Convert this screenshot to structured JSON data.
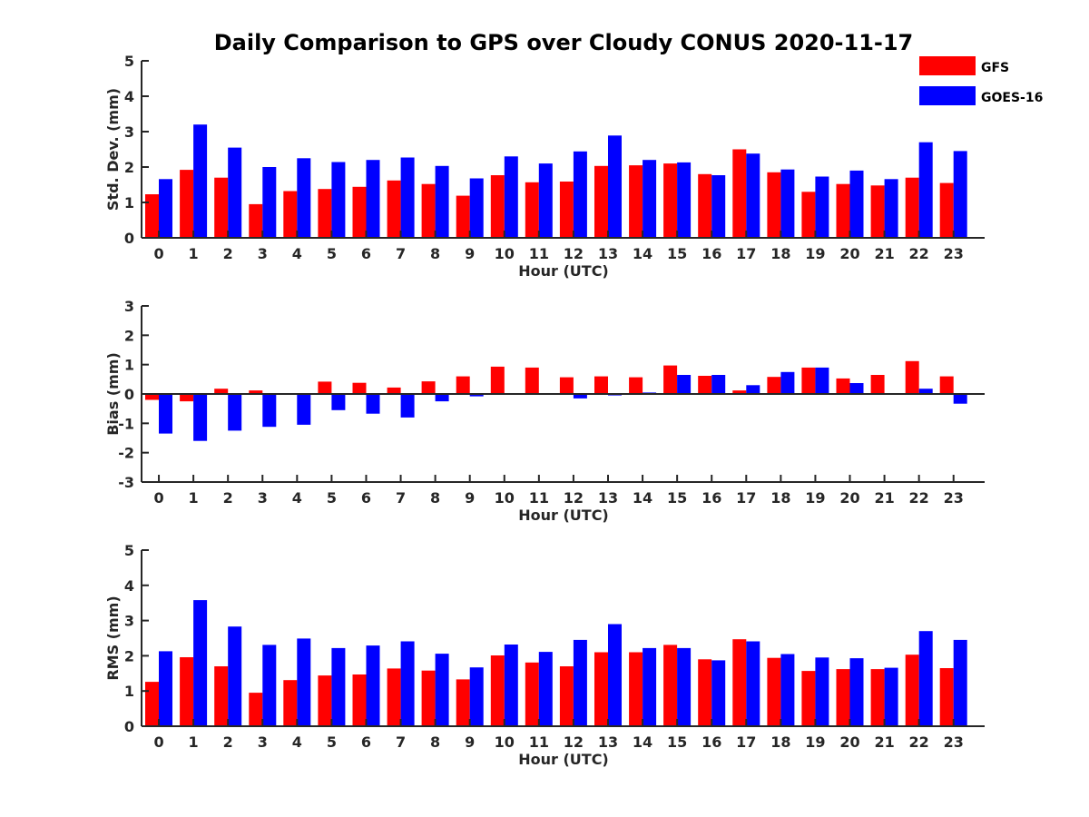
{
  "colors": {
    "gfs": "#ff0000",
    "goes": "#0000ff",
    "axis": "#262626"
  },
  "chart_data": [
    {
      "type": "bar",
      "title": "Daily Comparison to GPS over Cloudy CONUS 2020-11-17",
      "xlabel": "Hour (UTC)",
      "ylabel": "Std. Dev. (mm)",
      "ylim": [
        0,
        5
      ],
      "yticks": [
        0,
        1,
        2,
        3,
        4,
        5
      ],
      "categories": [
        "0",
        "1",
        "2",
        "3",
        "4",
        "5",
        "6",
        "7",
        "8",
        "9",
        "10",
        "11",
        "12",
        "13",
        "14",
        "15",
        "16",
        "17",
        "18",
        "19",
        "20",
        "21",
        "22",
        "23"
      ],
      "legend": {
        "location": "top-right",
        "entries": [
          "GFS",
          "GOES-16"
        ]
      },
      "series": [
        {
          "name": "GFS",
          "values": [
            1.23,
            1.92,
            1.7,
            0.95,
            1.32,
            1.38,
            1.44,
            1.62,
            1.52,
            1.19,
            1.77,
            1.57,
            1.59,
            2.03,
            2.05,
            2.1,
            1.8,
            2.5,
            1.85,
            1.3,
            1.52,
            1.48,
            1.7,
            1.55
          ]
        },
        {
          "name": "GOES-16",
          "values": [
            1.66,
            3.2,
            2.55,
            2.0,
            2.25,
            2.14,
            2.2,
            2.27,
            2.03,
            1.68,
            2.3,
            2.1,
            2.44,
            2.89,
            2.2,
            2.13,
            1.77,
            2.38,
            1.93,
            1.73,
            1.9,
            1.66,
            2.7,
            2.45
          ]
        }
      ]
    },
    {
      "type": "bar",
      "title": "",
      "xlabel": "Hour (UTC)",
      "ylabel": "Bias (mm)",
      "ylim": [
        -3,
        3
      ],
      "yticks": [
        -3,
        -2,
        -1,
        0,
        1,
        2,
        3
      ],
      "categories": [
        "0",
        "1",
        "2",
        "3",
        "4",
        "5",
        "6",
        "7",
        "8",
        "9",
        "10",
        "11",
        "12",
        "13",
        "14",
        "15",
        "16",
        "17",
        "18",
        "19",
        "20",
        "21",
        "22",
        "23"
      ],
      "series": [
        {
          "name": "GFS",
          "values": [
            -0.2,
            -0.25,
            0.18,
            0.12,
            0.0,
            0.42,
            0.38,
            0.22,
            0.43,
            0.6,
            0.93,
            0.9,
            0.57,
            0.6,
            0.57,
            0.97,
            0.62,
            0.12,
            0.58,
            0.9,
            0.53,
            0.65,
            1.12,
            0.6
          ]
        },
        {
          "name": "GOES-16",
          "values": [
            -1.35,
            -1.6,
            -1.25,
            -1.12,
            -1.05,
            -0.55,
            -0.67,
            -0.8,
            -0.25,
            -0.08,
            0.0,
            0.03,
            -0.15,
            -0.05,
            0.05,
            0.65,
            0.65,
            0.3,
            0.75,
            0.9,
            0.37,
            0.0,
            0.18,
            -0.33
          ]
        }
      ]
    },
    {
      "type": "bar",
      "title": "",
      "xlabel": "Hour (UTC)",
      "ylabel": "RMS (mm)",
      "ylim": [
        0,
        5
      ],
      "yticks": [
        0,
        1,
        2,
        3,
        4,
        5
      ],
      "categories": [
        "0",
        "1",
        "2",
        "3",
        "4",
        "5",
        "6",
        "7",
        "8",
        "9",
        "10",
        "11",
        "12",
        "13",
        "14",
        "15",
        "16",
        "17",
        "18",
        "19",
        "20",
        "21",
        "22",
        "23"
      ],
      "series": [
        {
          "name": "GFS",
          "values": [
            1.26,
            1.96,
            1.7,
            0.95,
            1.31,
            1.44,
            1.47,
            1.64,
            1.58,
            1.33,
            2.01,
            1.81,
            1.7,
            2.1,
            2.1,
            2.31,
            1.9,
            2.47,
            1.94,
            1.57,
            1.62,
            1.62,
            2.03,
            1.65
          ]
        },
        {
          "name": "GOES-16",
          "values": [
            2.13,
            3.58,
            2.83,
            2.31,
            2.49,
            2.22,
            2.29,
            2.41,
            2.06,
            1.67,
            2.32,
            2.11,
            2.45,
            2.9,
            2.22,
            2.22,
            1.87,
            2.41,
            2.05,
            1.95,
            1.93,
            1.66,
            2.7,
            2.45
          ]
        }
      ]
    }
  ]
}
